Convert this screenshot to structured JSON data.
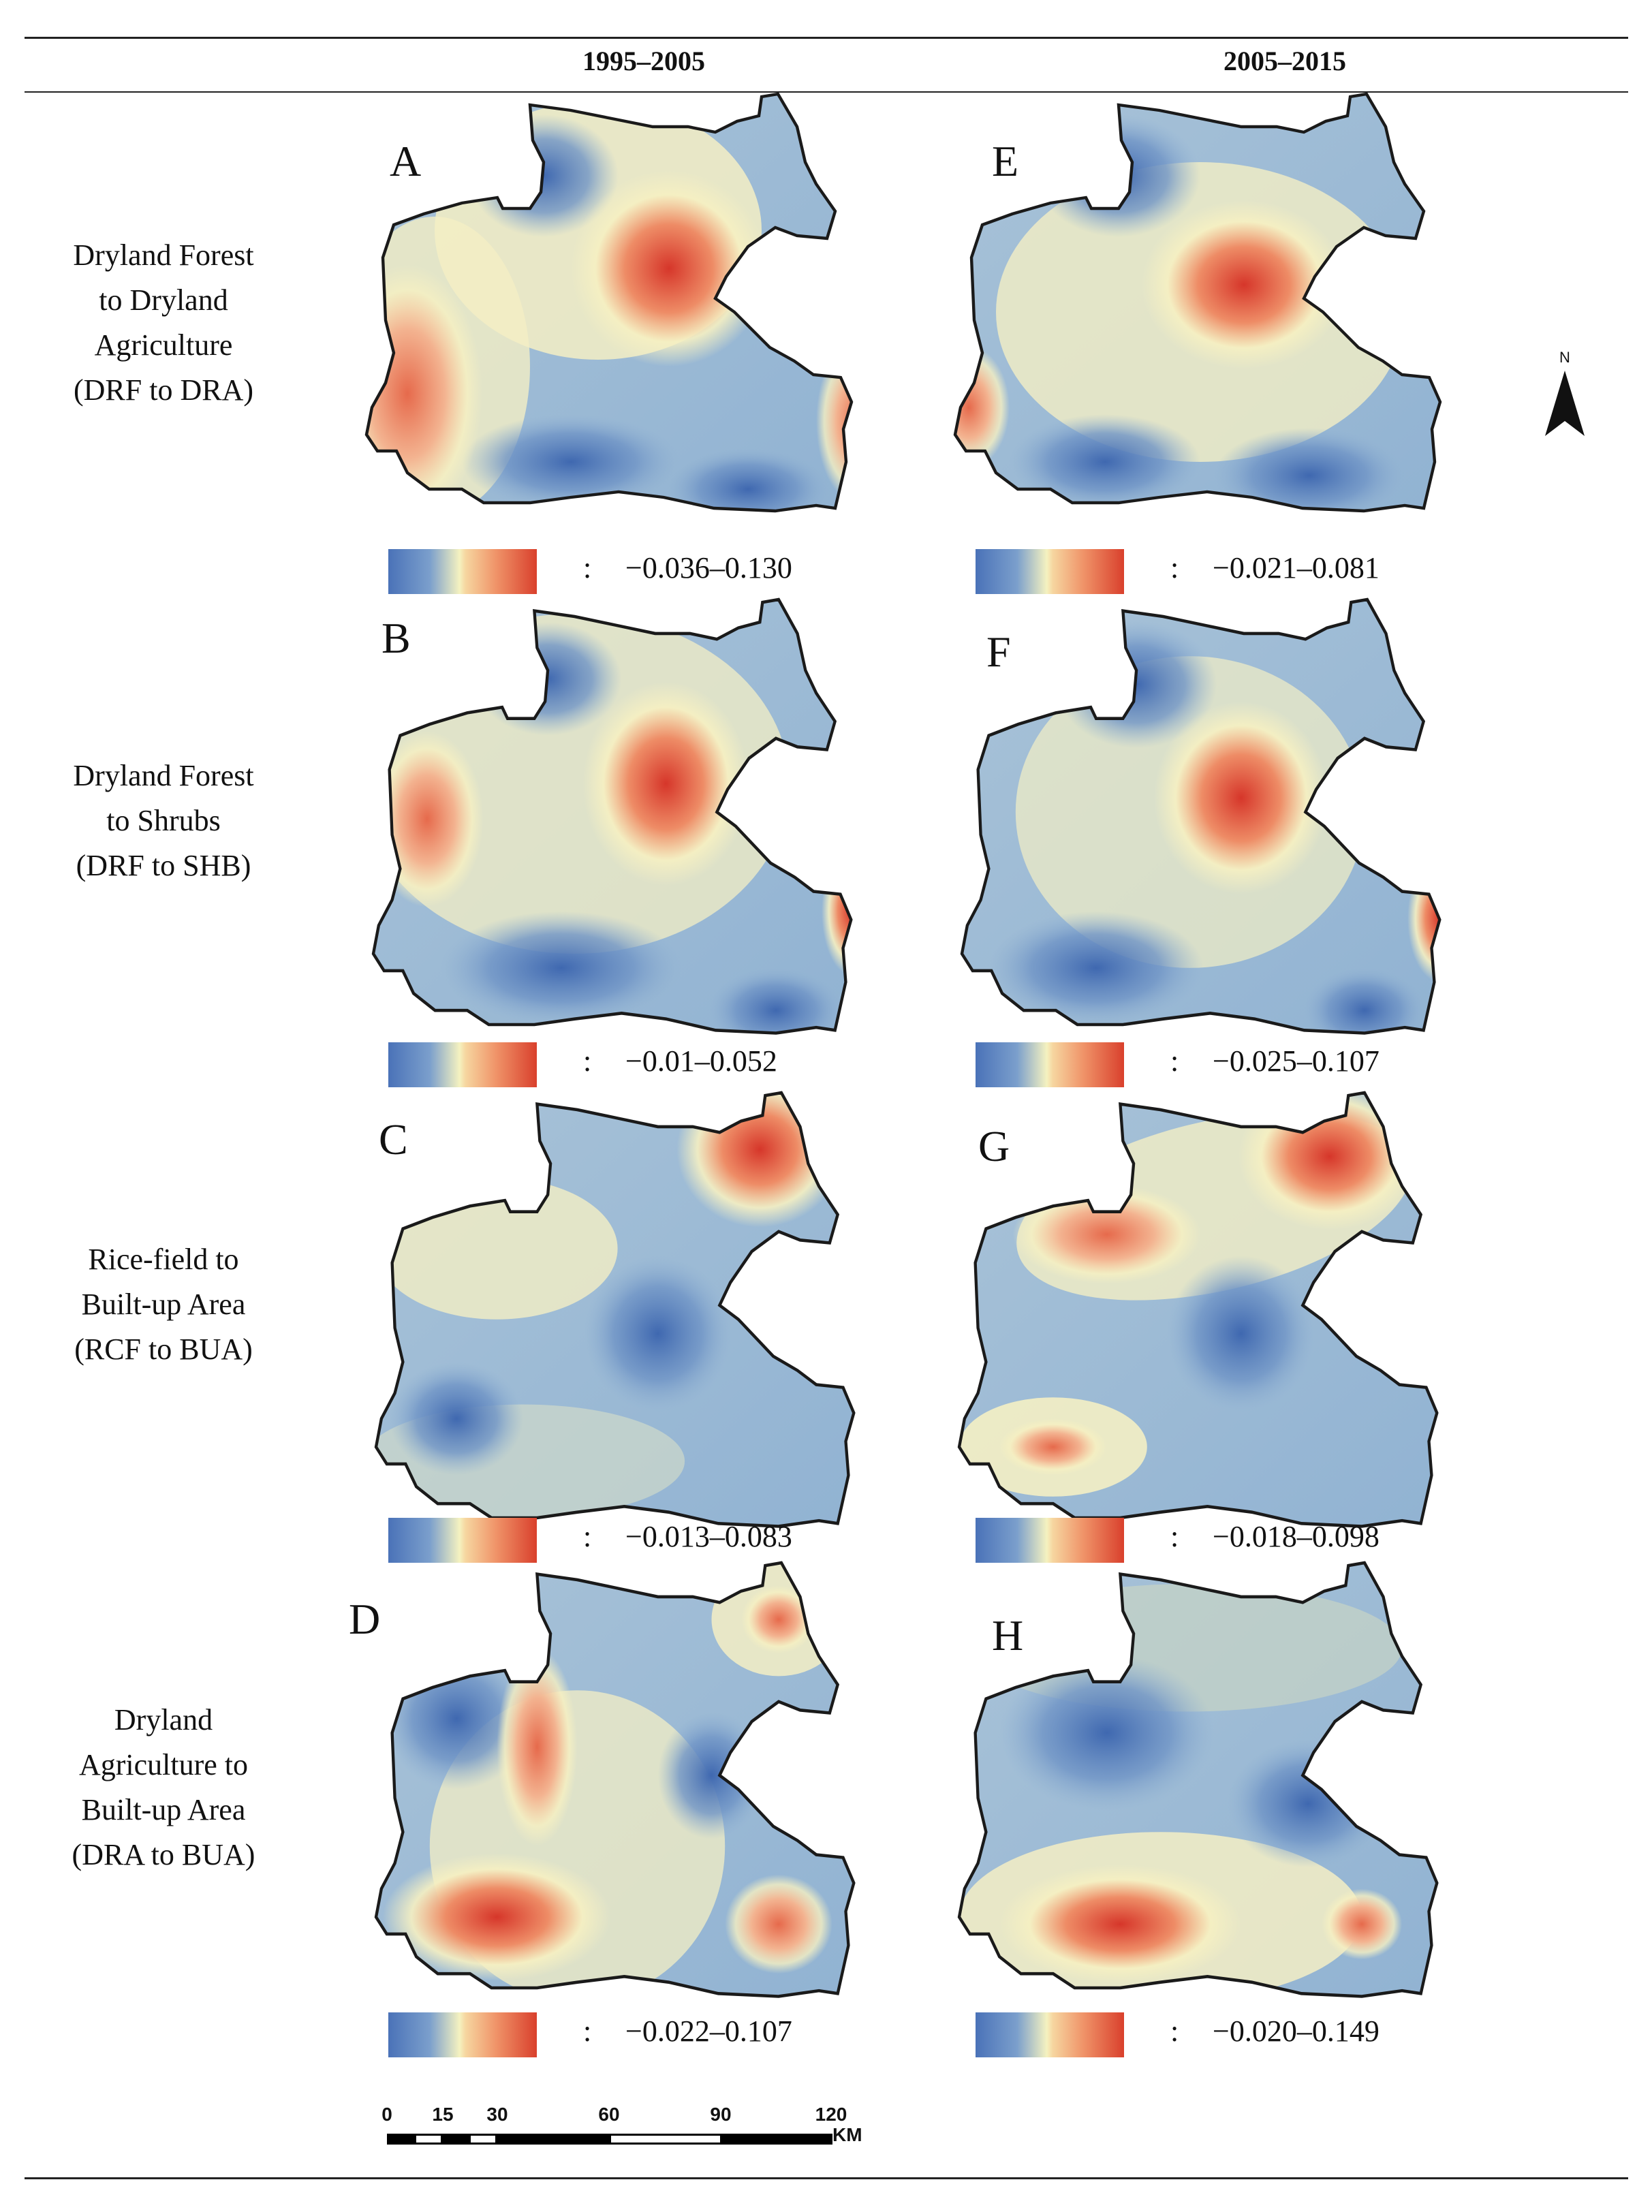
{
  "columns": [
    "1995–2005",
    "2005–2015"
  ],
  "rows": [
    {
      "label_lines": [
        "Dryland Forest",
        "to Dryland",
        "Agriculture",
        "(DRF to DRA)"
      ]
    },
    {
      "label_lines": [
        "Dryland Forest",
        "to Shrubs",
        "(DRF to SHB)"
      ]
    },
    {
      "label_lines": [
        "Rice-field to",
        "Built-up Area",
        "(RCF to BUA)"
      ]
    },
    {
      "label_lines": [
        "Dryland",
        "Agriculture to",
        "Built-up Area",
        "(DRA to BUA)"
      ]
    }
  ],
  "panels": {
    "A": {
      "letter": "A",
      "legend_sep": ":",
      "range": "−0.036–0.130"
    },
    "B": {
      "letter": "B",
      "legend_sep": ":",
      "range": "−0.01–0.052"
    },
    "C": {
      "letter": "C",
      "legend_sep": ":",
      "range": "−0.013–0.083"
    },
    "D": {
      "letter": "D",
      "legend_sep": ":",
      "range": "−0.022–0.107"
    },
    "E": {
      "letter": "E",
      "legend_sep": ":",
      "range": "−0.021–0.081"
    },
    "F": {
      "letter": "F",
      "legend_sep": ":",
      "range": "−0.025–0.107"
    },
    "G": {
      "letter": "G",
      "legend_sep": ":",
      "range": "−0.018–0.098"
    },
    "H": {
      "letter": "H",
      "legend_sep": ":",
      "range": "−0.020–0.149"
    }
  },
  "north_arrow": {
    "label": "N"
  },
  "scale_bar": {
    "ticks": [
      "0",
      "15",
      "30",
      "60",
      "90",
      "120"
    ],
    "unit": "KM"
  },
  "colors": {
    "low": "#4a72b8",
    "mid": "#f5f2c0",
    "high": "#d9402c",
    "outline": "#1a1a1a"
  }
}
